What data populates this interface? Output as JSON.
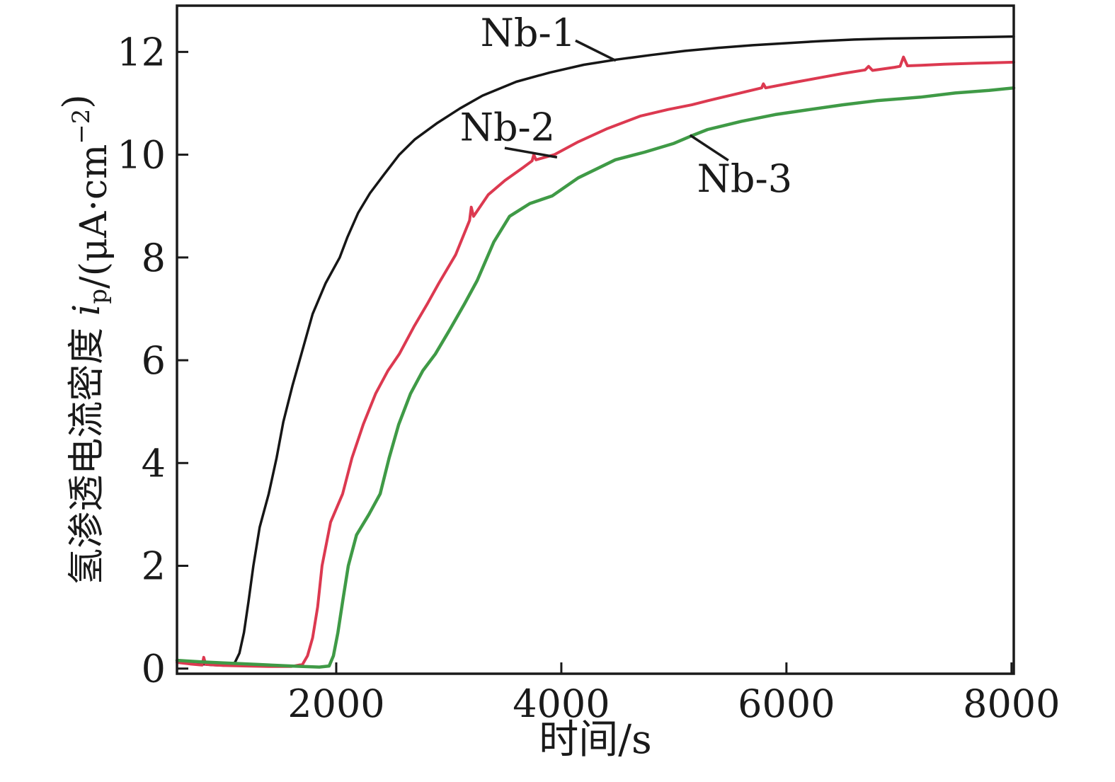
{
  "chart_data": {
    "type": "line",
    "title": "",
    "xlabel": "时间/s",
    "ylabel": "氢渗透电流密度 ip/(μA·cm−2)",
    "ylabel_parts": [
      {
        "t": "氢渗透电流密度 ",
        "style": "normal"
      },
      {
        "t": "i",
        "style": "italic"
      },
      {
        "t": "p",
        "script": "sub"
      },
      {
        "t": "/(μA·cm",
        "style": "normal"
      },
      {
        "t": "−2",
        "script": "sup"
      },
      {
        "t": ")",
        "style": "normal"
      }
    ],
    "xlim": [
      585,
      8020
    ],
    "ylim": [
      -0.1,
      12.9
    ],
    "x_ticks": [
      "2000",
      "4000",
      "6000",
      "8000"
    ],
    "x_tick_values": [
      2000,
      4000,
      6000,
      8000
    ],
    "y_ticks": [
      "0",
      "2",
      "4",
      "6",
      "8",
      "10",
      "12"
    ],
    "y_tick_values": [
      0,
      2,
      4,
      6,
      8,
      10,
      12
    ],
    "grid": false,
    "legend_position": "inline-annotations",
    "frame_color": "#1a1a1a",
    "series": [
      {
        "name": "Nb-1",
        "color": "#161616",
        "stroke_width": 3.5,
        "points": [
          [
            585,
            0.14
          ],
          [
            700,
            0.11
          ],
          [
            800,
            0.09
          ],
          [
            900,
            0.07
          ],
          [
            1000,
            0.06
          ],
          [
            1060,
            0.07
          ],
          [
            1100,
            0.12
          ],
          [
            1140,
            0.3
          ],
          [
            1180,
            0.7
          ],
          [
            1220,
            1.3
          ],
          [
            1264,
            2.0
          ],
          [
            1320,
            2.75
          ],
          [
            1400,
            3.4
          ],
          [
            1470,
            4.1
          ],
          [
            1530,
            4.8
          ],
          [
            1610,
            5.5
          ],
          [
            1690,
            6.12
          ],
          [
            1790,
            6.9
          ],
          [
            1906,
            7.5
          ],
          [
            2031,
            8.0
          ],
          [
            2100,
            8.4
          ],
          [
            2195,
            8.87
          ],
          [
            2300,
            9.25
          ],
          [
            2420,
            9.6
          ],
          [
            2560,
            10.0
          ],
          [
            2700,
            10.3
          ],
          [
            2900,
            10.62
          ],
          [
            3100,
            10.9
          ],
          [
            3300,
            11.15
          ],
          [
            3600,
            11.42
          ],
          [
            3900,
            11.6
          ],
          [
            4200,
            11.75
          ],
          [
            4490,
            11.85
          ],
          [
            4800,
            11.94
          ],
          [
            5100,
            12.02
          ],
          [
            5400,
            12.08
          ],
          [
            5700,
            12.13
          ],
          [
            6000,
            12.17
          ],
          [
            6300,
            12.21
          ],
          [
            6600,
            12.24
          ],
          [
            6900,
            12.26
          ],
          [
            7200,
            12.27
          ],
          [
            7500,
            12.28
          ],
          [
            7800,
            12.29
          ],
          [
            8020,
            12.3
          ]
        ]
      },
      {
        "name": "Nb-2",
        "color": "#dc3950",
        "stroke_width": 4,
        "points": [
          [
            585,
            0.12
          ],
          [
            700,
            0.09
          ],
          [
            808,
            0.07
          ],
          [
            823,
            0.22
          ],
          [
            840,
            0.08
          ],
          [
            1000,
            0.06
          ],
          [
            1200,
            0.05
          ],
          [
            1400,
            0.04
          ],
          [
            1600,
            0.04
          ],
          [
            1700,
            0.08
          ],
          [
            1745,
            0.25
          ],
          [
            1790,
            0.6
          ],
          [
            1835,
            1.2
          ],
          [
            1874,
            2.0
          ],
          [
            1950,
            2.85
          ],
          [
            2057,
            3.4
          ],
          [
            2140,
            4.1
          ],
          [
            2240,
            4.75
          ],
          [
            2350,
            5.35
          ],
          [
            2460,
            5.8
          ],
          [
            2560,
            6.12
          ],
          [
            2690,
            6.65
          ],
          [
            2810,
            7.1
          ],
          [
            2912,
            7.5
          ],
          [
            3060,
            8.05
          ],
          [
            3185,
            8.72
          ],
          [
            3200,
            8.98
          ],
          [
            3220,
            8.8
          ],
          [
            3350,
            9.22
          ],
          [
            3500,
            9.5
          ],
          [
            3660,
            9.75
          ],
          [
            3740,
            9.88
          ],
          [
            3755,
            10.0
          ],
          [
            3775,
            9.9
          ],
          [
            3937,
            10.0
          ],
          [
            4150,
            10.25
          ],
          [
            4400,
            10.5
          ],
          [
            4700,
            10.75
          ],
          [
            4950,
            10.88
          ],
          [
            5160,
            10.97
          ],
          [
            5302,
            11.05
          ],
          [
            5550,
            11.18
          ],
          [
            5780,
            11.3
          ],
          [
            5795,
            11.38
          ],
          [
            5815,
            11.3
          ],
          [
            6100,
            11.42
          ],
          [
            6300,
            11.5
          ],
          [
            6500,
            11.58
          ],
          [
            6700,
            11.65
          ],
          [
            6730,
            11.72
          ],
          [
            6765,
            11.64
          ],
          [
            6960,
            11.7
          ],
          [
            7010,
            11.72
          ],
          [
            7040,
            11.9
          ],
          [
            7075,
            11.73
          ],
          [
            7200,
            11.74
          ],
          [
            7400,
            11.76
          ],
          [
            7700,
            11.78
          ],
          [
            8020,
            11.8
          ]
        ]
      },
      {
        "name": "Nb-3",
        "color": "#3f9a46",
        "stroke_width": 4.5,
        "points": [
          [
            585,
            0.16
          ],
          [
            800,
            0.13
          ],
          [
            1000,
            0.11
          ],
          [
            1300,
            0.08
          ],
          [
            1600,
            0.05
          ],
          [
            1850,
            0.03
          ],
          [
            1937,
            0.05
          ],
          [
            1975,
            0.25
          ],
          [
            2015,
            0.7
          ],
          [
            2060,
            1.35
          ],
          [
            2107,
            2.0
          ],
          [
            2180,
            2.6
          ],
          [
            2290,
            3.0
          ],
          [
            2390,
            3.4
          ],
          [
            2470,
            4.1
          ],
          [
            2555,
            4.75
          ],
          [
            2660,
            5.35
          ],
          [
            2770,
            5.8
          ],
          [
            2880,
            6.12
          ],
          [
            3010,
            6.6
          ],
          [
            3140,
            7.1
          ],
          [
            3252,
            7.55
          ],
          [
            3400,
            8.3
          ],
          [
            3540,
            8.8
          ],
          [
            3720,
            9.05
          ],
          [
            3920,
            9.2
          ],
          [
            4150,
            9.55
          ],
          [
            4480,
            9.9
          ],
          [
            4740,
            10.05
          ],
          [
            5000,
            10.22
          ],
          [
            5150,
            10.36
          ],
          [
            5300,
            10.49
          ],
          [
            5600,
            10.65
          ],
          [
            5900,
            10.78
          ],
          [
            6180,
            10.87
          ],
          [
            6500,
            10.97
          ],
          [
            6800,
            11.05
          ],
          [
            7190,
            11.12
          ],
          [
            7500,
            11.2
          ],
          [
            7800,
            11.25
          ],
          [
            8020,
            11.3
          ]
        ]
      }
    ],
    "annotations": [
      {
        "label": "Nb-1",
        "text_pos": [
          3704,
          12.38
        ],
        "leader": [
          [
            4126,
            12.22
          ],
          [
            4484,
            11.83
          ]
        ]
      },
      {
        "label": "Nb-2",
        "text_pos": [
          3522,
          10.54
        ],
        "leader": [
          [
            3497,
            10.13
          ],
          [
            3962,
            9.95
          ]
        ]
      },
      {
        "label": "Nb-3",
        "text_pos": [
          5629,
          9.54
        ],
        "leader": [
          [
            5144,
            10.38
          ],
          [
            5484,
            9.89
          ]
        ]
      }
    ]
  }
}
